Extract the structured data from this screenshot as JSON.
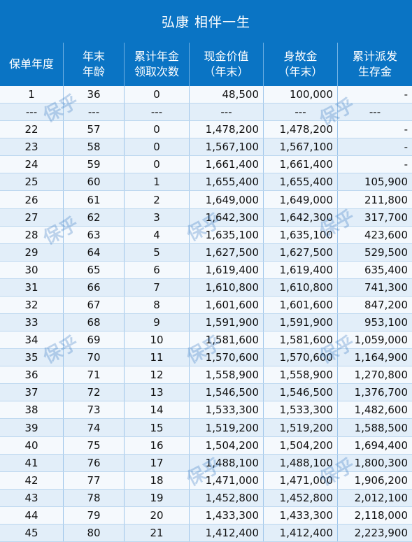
{
  "title": "弘康 相伴一生",
  "columns": [
    "保单年度",
    "年末\n年龄",
    "累计年金\n领取次数",
    "现金价值\n（年末）",
    "身故金\n（年末）",
    "累计派发\n生存金"
  ],
  "rows": [
    [
      "1",
      "36",
      "0",
      "48,500",
      "100,000",
      "-"
    ],
    [
      "---",
      "---",
      "---",
      "---",
      "---",
      "---"
    ],
    [
      "22",
      "57",
      "0",
      "1,478,200",
      "1,478,200",
      "-"
    ],
    [
      "23",
      "58",
      "0",
      "1,567,100",
      "1,567,100",
      "-"
    ],
    [
      "24",
      "59",
      "0",
      "1,661,400",
      "1,661,400",
      "-"
    ],
    [
      "25",
      "60",
      "1",
      "1,655,400",
      "1,655,400",
      "105,900"
    ],
    [
      "26",
      "61",
      "2",
      "1,649,000",
      "1,649,000",
      "211,800"
    ],
    [
      "27",
      "62",
      "3",
      "1,642,300",
      "1,642,300",
      "317,700"
    ],
    [
      "28",
      "63",
      "4",
      "1,635,100",
      "1,635,100",
      "423,600"
    ],
    [
      "29",
      "64",
      "5",
      "1,627,500",
      "1,627,500",
      "529,500"
    ],
    [
      "30",
      "65",
      "6",
      "1,619,400",
      "1,619,400",
      "635,400"
    ],
    [
      "31",
      "66",
      "7",
      "1,610,800",
      "1,610,800",
      "741,300"
    ],
    [
      "32",
      "67",
      "8",
      "1,601,600",
      "1,601,600",
      "847,200"
    ],
    [
      "33",
      "68",
      "9",
      "1,591,900",
      "1,591,900",
      "953,100"
    ],
    [
      "34",
      "69",
      "10",
      "1,581,600",
      "1,581,600",
      "1,059,000"
    ],
    [
      "35",
      "70",
      "11",
      "1,570,600",
      "1,570,600",
      "1,164,900"
    ],
    [
      "36",
      "71",
      "12",
      "1,558,900",
      "1,558,900",
      "1,270,800"
    ],
    [
      "37",
      "72",
      "13",
      "1,546,500",
      "1,546,500",
      "1,376,700"
    ],
    [
      "38",
      "73",
      "14",
      "1,533,300",
      "1,533,300",
      "1,482,600"
    ],
    [
      "39",
      "74",
      "15",
      "1,519,200",
      "1,519,200",
      "1,588,500"
    ],
    [
      "40",
      "75",
      "16",
      "1,504,200",
      "1,504,200",
      "1,694,400"
    ],
    [
      "41",
      "76",
      "17",
      "1,488,100",
      "1,488,100",
      "1,800,300"
    ],
    [
      "42",
      "77",
      "18",
      "1,471,000",
      "1,471,000",
      "1,906,200"
    ],
    [
      "43",
      "78",
      "19",
      "1,452,800",
      "1,452,800",
      "2,012,100"
    ],
    [
      "44",
      "79",
      "20",
      "1,433,300",
      "1,433,300",
      "2,118,000"
    ],
    [
      "45",
      "80",
      "21",
      "1,412,400",
      "1,412,400",
      "2,223,900"
    ]
  ],
  "watermark": "保乎",
  "colors": {
    "header_bg": "#0a74c4",
    "row_even": "#e2eef9",
    "row_odd": "#f5f9fd",
    "text": "#111111"
  }
}
